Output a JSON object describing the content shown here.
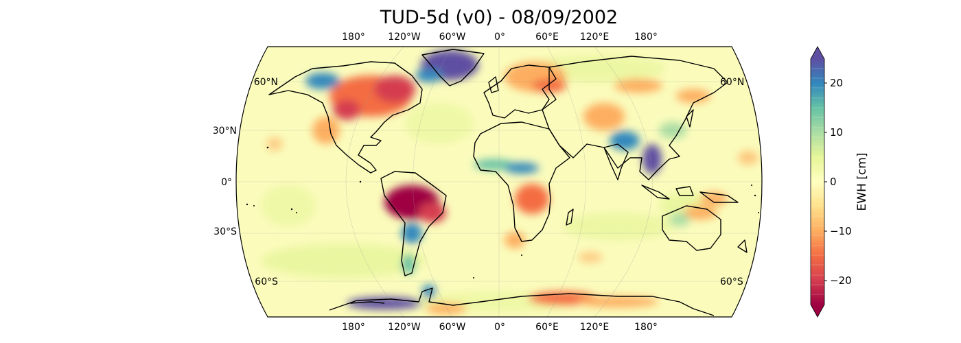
{
  "title": "TUD-5d (v0) - 08/09/2002",
  "map": {
    "projection": "Robinson",
    "top_lon_labels": [
      "180°",
      "120°W",
      "60°W",
      "0°",
      "60°E",
      "120°E",
      "180°"
    ],
    "bottom_lon_labels": [
      "180°",
      "120°W",
      "60°W",
      "0°",
      "60°E",
      "120°E",
      "180°"
    ],
    "left_lat_labels": [
      "60°N",
      "30°N",
      "0°",
      "30°S",
      "60°S"
    ],
    "right_lat_labels": [
      "60°N",
      "60°S"
    ],
    "grid": true
  },
  "colorbar": {
    "label": "EWH [cm]",
    "ticks": [
      "20",
      "10",
      "0",
      "−10",
      "−20"
    ],
    "range": [
      -25,
      25
    ],
    "extend": "both",
    "colormap": "Spectral",
    "colors": [
      "#9e0142",
      "#d53e4f",
      "#f46d43",
      "#fdae61",
      "#fee08b",
      "#ffffbf",
      "#e6f598",
      "#abdda4",
      "#66c2a5",
      "#3288bd",
      "#5e4fa2"
    ]
  },
  "anomalies": [
    {
      "region": "Greenland",
      "value": 25,
      "color": "#5e4fa2"
    },
    {
      "region": "Hudson Bay",
      "value": 15,
      "color": "#3288bd"
    },
    {
      "region": "Central Canada / USA",
      "value": -12,
      "color": "#f46d43"
    },
    {
      "region": "Amazon",
      "value": -25,
      "color": "#9e0142"
    },
    {
      "region": "Southern Africa",
      "value": -10,
      "color": "#fdae61"
    },
    {
      "region": "West Africa (Sahel)",
      "value": 8,
      "color": "#66c2a5"
    },
    {
      "region": "India / Bangladesh",
      "value": 15,
      "color": "#3288bd"
    },
    {
      "region": "Southeast Asia",
      "value": 25,
      "color": "#5e4fa2"
    },
    {
      "region": "Northern Europe",
      "value": -10,
      "color": "#fdae61"
    },
    {
      "region": "West Antarctica",
      "value": 25,
      "color": "#5e4fa2"
    },
    {
      "region": "East Antarctica coast",
      "value": -10,
      "color": "#fdae61"
    },
    {
      "region": "Patagonia",
      "value": 8,
      "color": "#66c2a5"
    }
  ]
}
